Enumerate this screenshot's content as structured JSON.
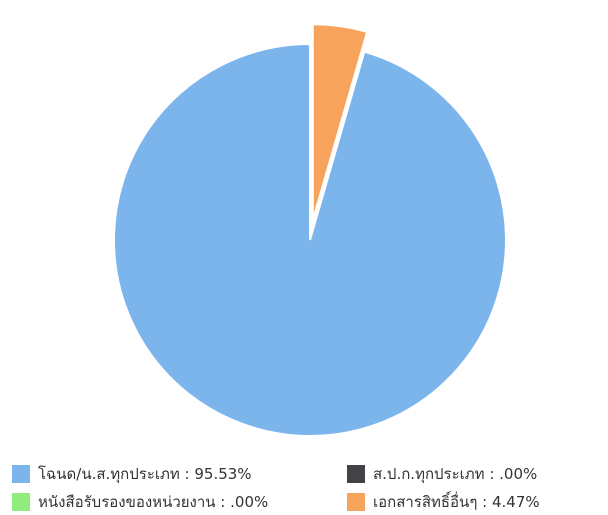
{
  "chart_data": {
    "type": "pie",
    "title": "",
    "slices": [
      {
        "label": "โฉนด/น.ส.ทุกประเภท : 95.53%",
        "value": 95.53,
        "color": "#7cb5ec",
        "exploded": false
      },
      {
        "label": "ส.ป.ก.ทุกประเภท : .00%",
        "value": 0.0,
        "color": "#434348",
        "exploded": false
      },
      {
        "label": "หนังสือรับรองของหน่วยงาน : .00%",
        "value": 0.0,
        "color": "#90ed7d",
        "exploded": false
      },
      {
        "label": "เอกสารสิทธิ์อื่นๆ : 4.47%",
        "value": 4.47,
        "color": "#f7a35c",
        "exploded": true
      }
    ],
    "legend_position": "bottom"
  }
}
